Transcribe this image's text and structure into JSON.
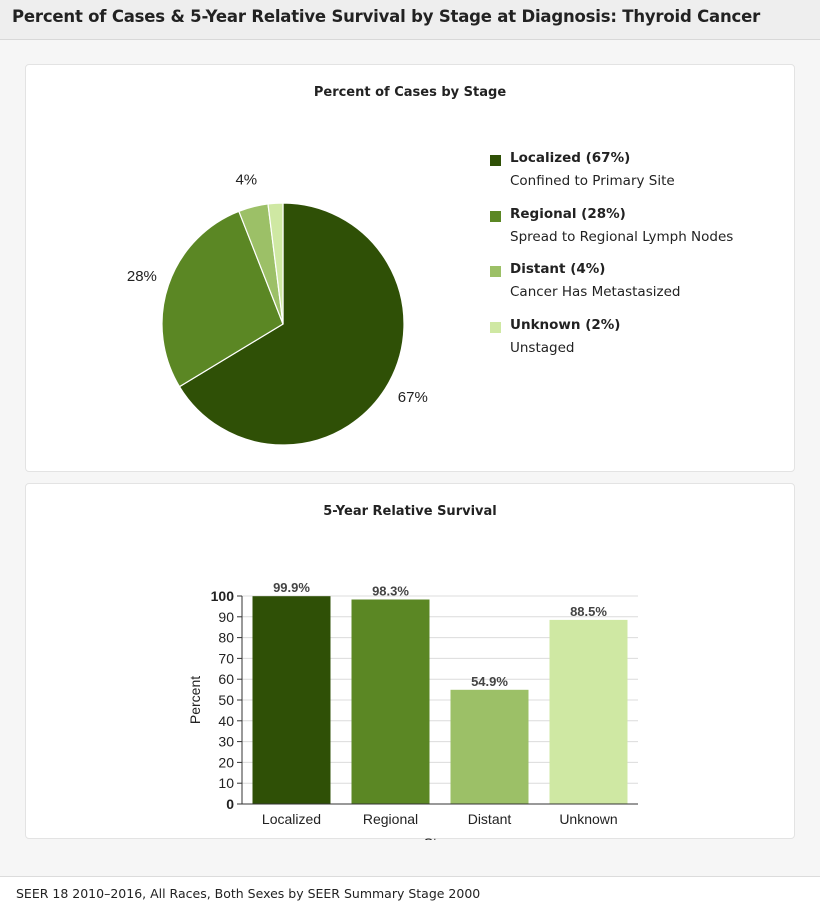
{
  "header": {
    "title": "Percent of Cases & 5-Year Relative Survival by Stage at Diagnosis: Thyroid Cancer"
  },
  "colors": {
    "localized": "#2f5006",
    "regional": "#5b8724",
    "distant": "#9cc067",
    "unknown": "#cfe8a3"
  },
  "chart_data": [
    {
      "type": "pie",
      "title": "Percent of Cases by Stage",
      "slices": [
        {
          "name": "Localized",
          "value": 67,
          "label": "67%",
          "legend": "Localized (67%)",
          "description": "Confined to Primary Site",
          "color": "#2f5006"
        },
        {
          "name": "Regional",
          "value": 28,
          "label": "28%",
          "legend": "Regional (28%)",
          "description": "Spread to Regional Lymph Nodes",
          "color": "#5b8724"
        },
        {
          "name": "Distant",
          "value": 4,
          "label": "4%",
          "legend": "Distant (4%)",
          "description": "Cancer Has Metastasized",
          "color": "#9cc067"
        },
        {
          "name": "Unknown",
          "value": 2,
          "label": "",
          "legend": "Unknown (2%)",
          "description": "Unstaged",
          "color": "#cfe8a3"
        }
      ],
      "legend_position": "right"
    },
    {
      "type": "bar",
      "title": "5-Year Relative Survival",
      "categories": [
        "Localized",
        "Regional",
        "Distant",
        "Unknown"
      ],
      "values": [
        99.9,
        98.3,
        54.9,
        88.5
      ],
      "value_labels": [
        "99.9%",
        "98.3%",
        "54.9%",
        "88.5%"
      ],
      "colors": [
        "#2f5006",
        "#5b8724",
        "#9cc067",
        "#cfe8a3"
      ],
      "xlabel": "Stage",
      "ylabel": "Percent",
      "ylim": [
        0,
        100
      ],
      "yticks": [
        0,
        10,
        20,
        30,
        40,
        50,
        60,
        70,
        80,
        90,
        100
      ],
      "grid": true
    }
  ],
  "footer": {
    "text": "SEER 18 2010–2016, All Races, Both Sexes by SEER Summary Stage 2000"
  }
}
